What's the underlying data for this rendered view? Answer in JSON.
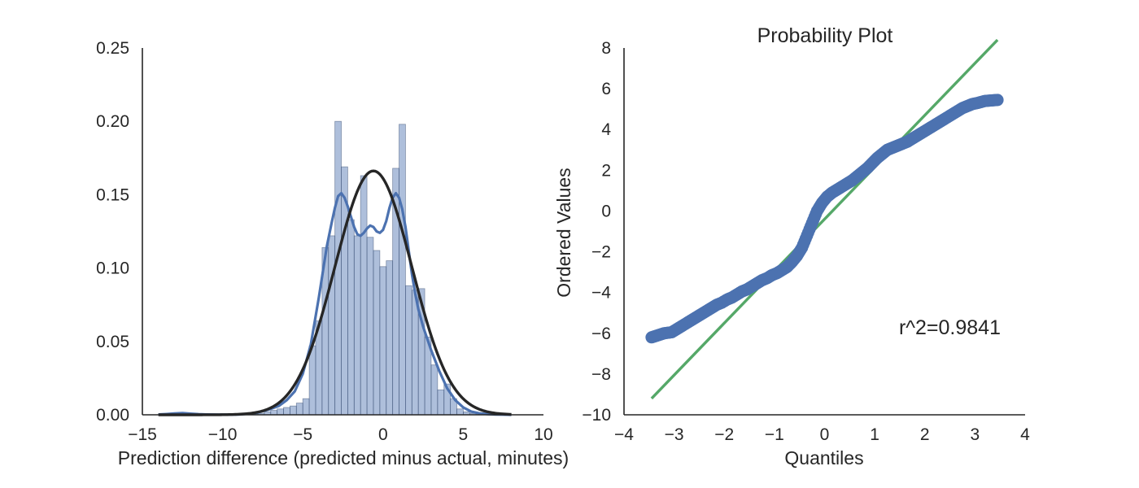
{
  "chart_data": [
    {
      "type": "histogram",
      "title": "",
      "xlabel": "Prediction difference (predicted minus actual, minutes)",
      "ylabel": "",
      "xlim": [
        -15,
        10
      ],
      "ylim": [
        0,
        0.25
      ],
      "xticks": [
        -15,
        -10,
        -5,
        0,
        5,
        10
      ],
      "xtick_labels": [
        "−15",
        "−10",
        "−5",
        "0",
        "5",
        "10"
      ],
      "yticks": [
        0,
        0.05,
        0.1,
        0.15,
        0.2,
        0.25
      ],
      "ytick_labels": [
        "0.00",
        "0.05",
        "0.10",
        "0.15",
        "0.20",
        "0.25"
      ],
      "grid": false,
      "bins": {
        "edges": [
          -8.2,
          -7.8,
          -7.4,
          -7.0,
          -6.6,
          -6.2,
          -5.8,
          -5.4,
          -5.0,
          -4.6,
          -4.2,
          -3.8,
          -3.4,
          -3.0,
          -2.6,
          -2.2,
          -1.8,
          -1.4,
          -1.0,
          -0.6,
          -0.2,
          0.2,
          0.6,
          1.0,
          1.4,
          1.8,
          2.2,
          2.6,
          3.0,
          3.4,
          3.8,
          4.2,
          4.6,
          5.0,
          5.4,
          5.8,
          6.2,
          6.6
        ],
        "heights": [
          0.001,
          0.001,
          0.002,
          0.003,
          0.004,
          0.005,
          0.006,
          0.008,
          0.011,
          0.047,
          0.064,
          0.114,
          0.122,
          0.2,
          0.169,
          0.133,
          0.122,
          0.163,
          0.121,
          0.112,
          0.101,
          0.105,
          0.168,
          0.198,
          0.088,
          0.085,
          0.086,
          0.053,
          0.034,
          0.017,
          0.021,
          0.011,
          0.004,
          0.002,
          0.001,
          0.001,
          0.001
        ],
        "color": "#4c72b0",
        "alpha": 0.45
      },
      "kde": {
        "x": [
          -14,
          -13.5,
          -13,
          -12.5,
          -12,
          -11.5,
          -11,
          -10,
          -9,
          -8,
          -7,
          -6.5,
          -6,
          -5.5,
          -5,
          -4.5,
          -4,
          -3.5,
          -3.2,
          -3.0,
          -2.8,
          -2.6,
          -2.4,
          -2.2,
          -2.0,
          -1.8,
          -1.6,
          -1.4,
          -1.2,
          -1.0,
          -0.8,
          -0.6,
          -0.4,
          -0.2,
          0,
          0.2,
          0.4,
          0.6,
          0.8,
          1.0,
          1.2,
          1.4,
          1.6,
          1.8,
          2.0,
          2.2,
          2.5,
          3.0,
          3.5,
          4.0,
          4.5,
          5.0,
          5.5,
          6.0,
          6.5,
          7.0,
          7.5,
          8.0
        ],
        "y": [
          0.0002,
          0.0005,
          0.0009,
          0.0012,
          0.0008,
          0.0004,
          0.0002,
          0.0001,
          0.0002,
          0.001,
          0.004,
          0.006,
          0.01,
          0.016,
          0.028,
          0.048,
          0.08,
          0.115,
          0.131,
          0.141,
          0.149,
          0.151,
          0.148,
          0.142,
          0.135,
          0.128,
          0.123,
          0.122,
          0.124,
          0.127,
          0.129,
          0.128,
          0.125,
          0.124,
          0.126,
          0.132,
          0.141,
          0.148,
          0.151,
          0.148,
          0.14,
          0.128,
          0.112,
          0.096,
          0.083,
          0.072,
          0.06,
          0.044,
          0.03,
          0.018,
          0.01,
          0.005,
          0.0022,
          0.001,
          0.0005,
          0.0002,
          0.0001,
          0.0
        ],
        "color": "#4c72b0"
      },
      "normal_fit": {
        "mean": -0.6,
        "sd": 2.4,
        "x_range": [
          -14,
          8
        ],
        "color": "#262626"
      }
    },
    {
      "type": "scatter",
      "title": "Probability Plot",
      "xlabel": "Quantiles",
      "ylabel": "Ordered Values",
      "xlim": [
        -4,
        4
      ],
      "ylim": [
        -10,
        8
      ],
      "xticks": [
        -4,
        -3,
        -2,
        -1,
        0,
        1,
        2,
        3,
        4
      ],
      "xtick_labels": [
        "−4",
        "−3",
        "−2",
        "−1",
        "0",
        "1",
        "2",
        "3",
        "4"
      ],
      "yticks": [
        -10,
        -8,
        -6,
        -4,
        -2,
        0,
        2,
        4,
        6,
        8
      ],
      "ytick_labels": [
        "−10",
        "−8",
        "−6",
        "−4",
        "−2",
        "0",
        "2",
        "4",
        "6",
        "8"
      ],
      "grid": false,
      "annotation": "r^2=0.9841",
      "points": {
        "color": "#4c72b0",
        "q": [
          -3.45,
          -3.2,
          -3.05,
          -2.95,
          -2.85,
          -2.75,
          -2.65,
          -2.55,
          -2.45,
          -2.35,
          -2.25,
          -2.15,
          -2.05,
          -1.95,
          -1.85,
          -1.75,
          -1.65,
          -1.55,
          -1.45,
          -1.35,
          -1.25,
          -1.15,
          -1.05,
          -0.95,
          -0.85,
          -0.75,
          -0.65,
          -0.55,
          -0.45,
          -0.35,
          -0.25,
          -0.15,
          -0.05,
          0.05,
          0.15,
          0.25,
          0.35,
          0.45,
          0.55,
          0.65,
          0.75,
          0.85,
          0.95,
          1.05,
          1.15,
          1.25,
          1.35,
          1.45,
          1.55,
          1.65,
          1.75,
          1.85,
          1.95,
          2.05,
          2.15,
          2.25,
          2.35,
          2.45,
          2.55,
          2.65,
          2.75,
          2.85,
          2.95,
          3.05,
          3.2,
          3.45
        ],
        "v": [
          -6.2,
          -6.0,
          -5.95,
          -5.8,
          -5.65,
          -5.5,
          -5.35,
          -5.2,
          -5.05,
          -4.9,
          -4.75,
          -4.6,
          -4.5,
          -4.35,
          -4.25,
          -4.1,
          -3.95,
          -3.85,
          -3.7,
          -3.55,
          -3.4,
          -3.3,
          -3.15,
          -3.05,
          -2.9,
          -2.75,
          -2.5,
          -2.2,
          -1.8,
          -1.2,
          -0.6,
          0.0,
          0.4,
          0.7,
          0.9,
          1.05,
          1.2,
          1.35,
          1.5,
          1.7,
          1.9,
          2.1,
          2.35,
          2.6,
          2.8,
          3.0,
          3.1,
          3.2,
          3.3,
          3.4,
          3.55,
          3.7,
          3.85,
          4.0,
          4.15,
          4.3,
          4.45,
          4.6,
          4.75,
          4.9,
          5.05,
          5.15,
          5.25,
          5.3,
          5.4,
          5.45
        ]
      },
      "fit_line": {
        "slope": 2.55,
        "intercept": -0.4,
        "x_range": [
          -3.45,
          3.45
        ],
        "color": "#55a868"
      }
    }
  ]
}
